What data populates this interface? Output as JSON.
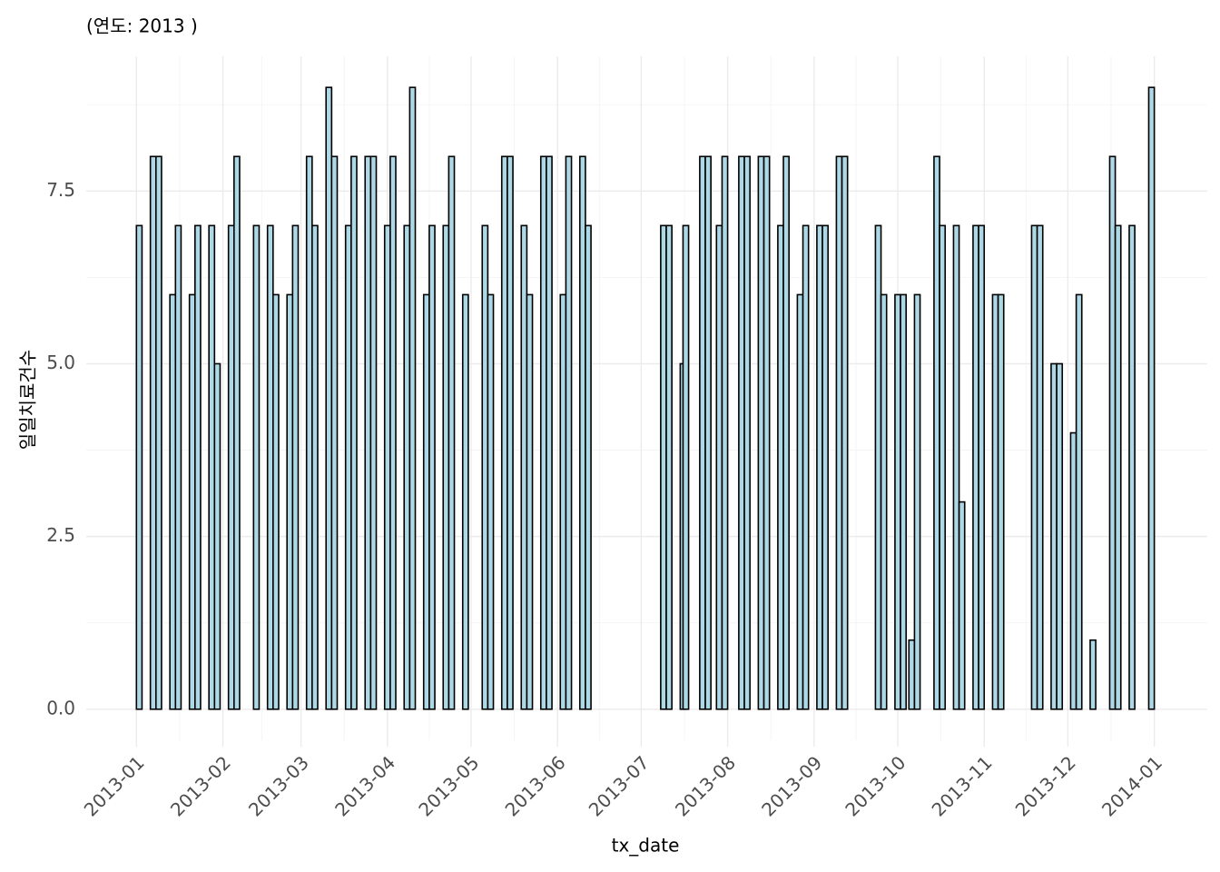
{
  "chart_data": {
    "type": "bar",
    "title": "(연도: 2013 )",
    "xlabel": "tx_date",
    "ylabel": "일일치료건수",
    "x": [
      1,
      6,
      8,
      13,
      15,
      20,
      22,
      27,
      29,
      34,
      36,
      43,
      48,
      50,
      55,
      57,
      62,
      64,
      69,
      71,
      76,
      78,
      83,
      85,
      90,
      92,
      97,
      99,
      104,
      106,
      111,
      113,
      118,
      125,
      127,
      132,
      134,
      139,
      141,
      146,
      148,
      153,
      155,
      160,
      162,
      189,
      191,
      196,
      197,
      203,
      205,
      209,
      211,
      217,
      219,
      224,
      226,
      231,
      233,
      238,
      240,
      245,
      247,
      252,
      254,
      266,
      268,
      273,
      275,
      278,
      280,
      287,
      289,
      294,
      296,
      301,
      303,
      308,
      310,
      322,
      324,
      329,
      331,
      336,
      338,
      343,
      350,
      352,
      357,
      364
    ],
    "values": [
      7,
      8,
      8,
      6,
      7,
      6,
      7,
      7,
      5,
      7,
      8,
      7,
      7,
      6,
      6,
      7,
      8,
      7,
      9,
      8,
      7,
      8,
      8,
      8,
      7,
      8,
      7,
      9,
      6,
      7,
      7,
      8,
      6,
      7,
      6,
      8,
      8,
      7,
      6,
      8,
      8,
      6,
      8,
      8,
      7,
      7,
      7,
      5,
      7,
      8,
      8,
      7,
      8,
      8,
      8,
      8,
      8,
      7,
      8,
      6,
      7,
      7,
      7,
      8,
      8,
      7,
      6,
      6,
      6,
      1,
      6,
      8,
      7,
      7,
      3,
      7,
      7,
      6,
      6,
      7,
      7,
      5,
      5,
      4,
      6,
      1,
      8,
      7,
      7,
      9
    ],
    "color": "#add8e6",
    "edgecolor": "#000000",
    "xlim": [
      -18,
      384
    ],
    "ylim": [
      -0.45,
      9.45
    ],
    "xticks": [
      {
        "value": 0,
        "label": "2013-01"
      },
      {
        "value": 31,
        "label": "2013-02"
      },
      {
        "value": 59,
        "label": "2013-03"
      },
      {
        "value": 90,
        "label": "2013-04"
      },
      {
        "value": 120,
        "label": "2013-05"
      },
      {
        "value": 151,
        "label": "2013-06"
      },
      {
        "value": 181,
        "label": "2013-07"
      },
      {
        "value": 212,
        "label": "2013-08"
      },
      {
        "value": 243,
        "label": "2013-09"
      },
      {
        "value": 273,
        "label": "2013-10"
      },
      {
        "value": 304,
        "label": "2013-11"
      },
      {
        "value": 334,
        "label": "2013-12"
      },
      {
        "value": 365,
        "label": "2014-01"
      }
    ],
    "yticks": [
      {
        "value": 0,
        "label": "0.0"
      },
      2.5,
      {
        "value": 5,
        "label": "5.0"
      },
      7.5
    ],
    "grid": true
  }
}
